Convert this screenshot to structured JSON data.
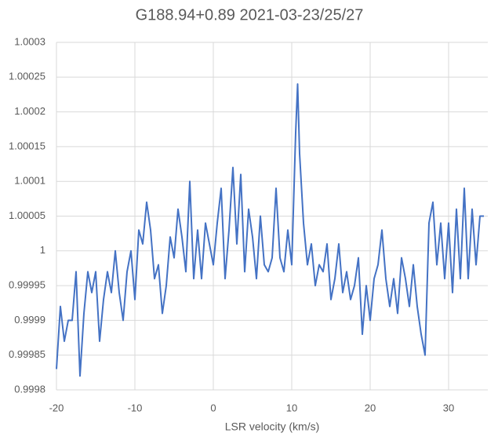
{
  "chart_data": {
    "type": "line",
    "title": "G188.94+0.89 2021-03-23/25/27",
    "x_label": "LSR velocity (km/s)",
    "x": [
      -20,
      -19.5,
      -19,
      -18.5,
      -18,
      -17.5,
      -17,
      -16.5,
      -16,
      -15.5,
      -15,
      -14.5,
      -14,
      -13.5,
      -13,
      -12.5,
      -12,
      -11.5,
      -11,
      -10.5,
      -10,
      -9.5,
      -9,
      -8.5,
      -8,
      -7.5,
      -7,
      -6.5,
      -6,
      -5.5,
      -5,
      -4.5,
      -4,
      -3.5,
      -3,
      -2.5,
      -2,
      -1.5,
      -1,
      -0.5,
      0,
      0.5,
      1,
      1.5,
      2,
      2.5,
      3,
      3.5,
      4,
      4.5,
      5,
      5.5,
      6,
      6.5,
      7,
      7.5,
      8,
      8.5,
      9,
      9.5,
      10,
      10.5,
      10.75,
      11,
      11.5,
      12,
      12.5,
      13,
      13.5,
      14,
      14.5,
      15,
      15.5,
      16,
      16.5,
      17,
      17.5,
      18,
      18.5,
      19,
      19.5,
      20,
      20.5,
      21,
      21.5,
      22,
      22.5,
      23,
      23.5,
      24,
      24.5,
      25,
      25.5,
      26,
      26.5,
      27,
      27.5,
      28,
      28.5,
      29,
      29.5,
      30,
      30.5,
      31,
      31.5,
      32,
      32.5,
      33,
      33.5,
      34,
      34.5
    ],
    "series": [
      {
        "color": "#4472c4",
        "values": [
          0.99983,
          0.99992,
          0.99987,
          0.9999,
          0.9999,
          0.99997,
          0.99982,
          0.99991,
          0.99997,
          0.99994,
          0.99997,
          0.99987,
          0.99993,
          0.99997,
          0.99994,
          1.0,
          0.99994,
          0.9999,
          0.99997,
          1.0,
          0.99993,
          1.00003,
          1.00001,
          1.00007,
          1.00003,
          0.99996,
          0.99998,
          0.99991,
          0.99995,
          1.00002,
          0.99999,
          1.00006,
          1.00002,
          0.99997,
          1.0001,
          0.99996,
          1.00003,
          0.99996,
          1.00004,
          1.00001,
          0.99998,
          1.00004,
          1.00009,
          0.99996,
          1.00003,
          1.00012,
          1.00001,
          1.00011,
          0.99997,
          1.00006,
          1.00002,
          0.99996,
          1.00005,
          0.99998,
          0.99997,
          0.99999,
          1.00009,
          0.99999,
          0.99997,
          1.00003,
          0.99998,
          1.00017,
          1.00024,
          1.00014,
          1.00004,
          0.99998,
          1.00001,
          0.99995,
          0.99998,
          0.99997,
          1.00001,
          0.99993,
          0.99996,
          1.00001,
          0.99994,
          0.99997,
          0.99993,
          0.99995,
          0.99999,
          0.99988,
          0.99995,
          0.9999,
          0.99996,
          0.99998,
          1.00003,
          0.99996,
          0.99992,
          0.99996,
          0.99991,
          0.99999,
          0.99996,
          0.99992,
          0.99998,
          0.99992,
          0.99988,
          0.99985,
          1.00004,
          1.00007,
          0.99998,
          1.00004,
          0.99996,
          1.00004,
          0.99994,
          1.00006,
          0.99996,
          1.00009,
          0.99996,
          1.00006,
          0.99998,
          1.00005,
          1.00005
        ]
      }
    ],
    "xlim": [
      -20,
      35
    ],
    "xticks": [
      -20,
      -10,
      0,
      10,
      20,
      30
    ],
    "ylim": [
      0.9998,
      1.0003
    ],
    "yticks": [
      0.9998,
      0.99985,
      0.9999,
      0.99995,
      1,
      1.00005,
      1.0001,
      1.00015,
      1.0002,
      1.00025,
      1.0003
    ],
    "grid": true
  }
}
